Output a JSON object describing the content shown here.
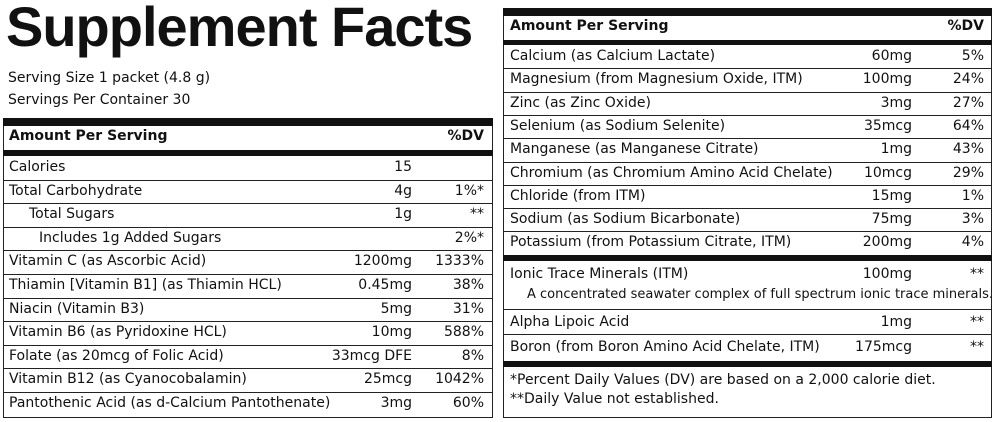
{
  "title": "Supplement Facts",
  "serving_size": "Serving Size 1 packet (4.8 g)",
  "servings_per_container": "Servings Per Container 30",
  "left": {
    "header": {
      "amount": "Amount Per Serving",
      "dv": "%DV"
    },
    "rows": [
      {
        "name": "Calories",
        "amount": "15"
      },
      {
        "name": "Total Carbohydrate",
        "amount": "4g",
        "dv": "1%*"
      },
      {
        "name": "Total Sugars",
        "amount": "1g",
        "dv": "**"
      },
      {
        "name": "Includes 1g Added Sugars",
        "dv": "2%*"
      },
      {
        "name": "Vitamin C (as Ascorbic Acid)",
        "amount": "1200mg",
        "dv": "1333%"
      },
      {
        "name": "Thiamin [Vitamin B1] (as Thiamin HCL)",
        "amount": "0.45mg",
        "dv": "38%"
      },
      {
        "name": "Niacin (Vitamin B3)",
        "amount": "5mg",
        "dv": "31%"
      },
      {
        "name": "Vitamin B6 (as Pyridoxine HCL)",
        "amount": "10mg",
        "dv": "588%"
      },
      {
        "name": "Folate (as 20mcg of Folic Acid)",
        "amount": "33mcg DFE",
        "dv": "8%"
      },
      {
        "name": "Vitamin B12 (as Cyanocobalamin)",
        "amount": "25mcg",
        "dv": "1042%"
      },
      {
        "name": "Pantothenic Acid (as d-Calcium Pantothenate)",
        "amount": "3mg",
        "dv": "60%"
      }
    ]
  },
  "right": {
    "header": {
      "amount": "Amount Per Serving",
      "dv": "%DV"
    },
    "minerals": [
      {
        "name": "Calcium (as Calcium Lactate)",
        "amount": "60mg",
        "dv": "5%"
      },
      {
        "name": "Magnesium (from Magnesium Oxide, ITM)",
        "amount": "100mg",
        "dv": "24%"
      },
      {
        "name": "Zinc (as Zinc Oxide)",
        "amount": "3mg",
        "dv": "27%"
      },
      {
        "name": "Selenium (as Sodium Selenite)",
        "amount": "35mcg",
        "dv": "64%"
      },
      {
        "name": "Manganese (as Manganese Citrate)",
        "amount": "1mg",
        "dv": "43%"
      },
      {
        "name": "Chromium (as Chromium Amino Acid Chelate)",
        "amount": "10mcg",
        "dv": "29%"
      },
      {
        "name": "Chloride (from ITM)",
        "amount": "15mg",
        "dv": "1%"
      },
      {
        "name": "Sodium (as Sodium Bicarbonate)",
        "amount": "75mg",
        "dv": "3%"
      },
      {
        "name": "Potassium (from Potassium Citrate, ITM)",
        "amount": "200mg",
        "dv": "4%"
      }
    ],
    "others": [
      {
        "name": "Ionic Trace Minerals (ITM)",
        "amount": "100mg",
        "dv": "**",
        "note": "A concentrated seawater complex of full spectrum ionic trace minerals."
      },
      {
        "name": "Alpha Lipoic Acid",
        "amount": "1mg",
        "dv": "**"
      },
      {
        "name": "Boron (from Boron Amino Acid Chelate, ITM)",
        "amount": "175mcg",
        "dv": "**"
      }
    ]
  },
  "footnotes": [
    "*Percent Daily Values (DV) are based on a 2,000 calorie diet.",
    "**Daily Value not established."
  ]
}
